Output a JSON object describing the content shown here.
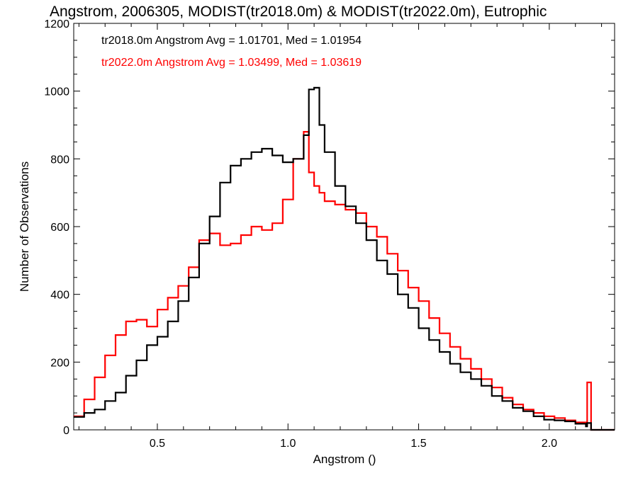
{
  "chart_data": {
    "type": "line",
    "title": "Angstrom, 2006305, MODIST(tr2018.0m) & MODIST(tr2022.0m), Eutrophic",
    "xlabel": "Angstrom ()",
    "ylabel": "Number of Observations",
    "xlim": [
      0.18,
      2.25
    ],
    "ylim": [
      0,
      1200
    ],
    "xticks": [
      0.5,
      1.0,
      1.5,
      2.0
    ],
    "xtick_labels": [
      "0.5",
      "1.0",
      "1.5",
      "2.0"
    ],
    "yticks": [
      0,
      200,
      400,
      600,
      800,
      1000,
      1200
    ],
    "ytick_labels": [
      "0",
      "200",
      "400",
      "600",
      "800",
      "1000",
      "1200"
    ],
    "grid": false,
    "legend_position": "top-left",
    "annotations": [
      "tr2018.0m Angstrom Avg = 1.01701, Med = 1.01954",
      "tr2022.0m Angstrom Avg = 1.03499, Med = 1.03619"
    ],
    "series": [
      {
        "color": "#000000",
        "x": [
          0.18,
          0.22,
          0.26,
          0.3,
          0.34,
          0.38,
          0.42,
          0.46,
          0.5,
          0.54,
          0.58,
          0.62,
          0.66,
          0.7,
          0.74,
          0.78,
          0.82,
          0.86,
          0.9,
          0.94,
          0.98,
          1.02,
          1.06,
          1.08,
          1.1,
          1.12,
          1.14,
          1.18,
          1.22,
          1.26,
          1.3,
          1.34,
          1.38,
          1.42,
          1.46,
          1.5,
          1.54,
          1.58,
          1.62,
          1.66,
          1.7,
          1.74,
          1.78,
          1.82,
          1.86,
          1.9,
          1.94,
          1.98,
          2.02,
          2.06,
          2.1,
          2.14,
          2.145,
          2.16,
          2.25
        ],
        "y": [
          38,
          50,
          60,
          85,
          110,
          160,
          205,
          250,
          275,
          320,
          380,
          450,
          550,
          630,
          730,
          780,
          800,
          820,
          830,
          810,
          790,
          800,
          870,
          1005,
          1010,
          900,
          820,
          720,
          660,
          610,
          560,
          500,
          460,
          400,
          360,
          300,
          265,
          230,
          195,
          170,
          150,
          130,
          100,
          85,
          65,
          55,
          40,
          30,
          28,
          25,
          18,
          10,
          20,
          0,
          0
        ]
      },
      {
        "color": "#ff0000",
        "x": [
          0.18,
          0.22,
          0.26,
          0.3,
          0.34,
          0.38,
          0.42,
          0.46,
          0.5,
          0.54,
          0.58,
          0.62,
          0.66,
          0.7,
          0.74,
          0.78,
          0.82,
          0.86,
          0.9,
          0.94,
          0.98,
          1.02,
          1.06,
          1.08,
          1.1,
          1.12,
          1.14,
          1.18,
          1.22,
          1.26,
          1.3,
          1.34,
          1.38,
          1.42,
          1.46,
          1.5,
          1.54,
          1.58,
          1.62,
          1.66,
          1.7,
          1.74,
          1.78,
          1.82,
          1.86,
          1.9,
          1.94,
          1.98,
          2.02,
          2.06,
          2.1,
          2.14,
          2.145,
          2.16,
          2.25
        ],
        "y": [
          40,
          90,
          155,
          220,
          280,
          320,
          325,
          305,
          355,
          390,
          425,
          480,
          560,
          580,
          545,
          550,
          575,
          600,
          590,
          610,
          680,
          800,
          880,
          760,
          720,
          700,
          675,
          665,
          650,
          640,
          600,
          570,
          520,
          470,
          420,
          380,
          330,
          285,
          245,
          210,
          180,
          150,
          125,
          95,
          75,
          60,
          50,
          40,
          35,
          28,
          22,
          15,
          140,
          0,
          0
        ]
      }
    ]
  }
}
